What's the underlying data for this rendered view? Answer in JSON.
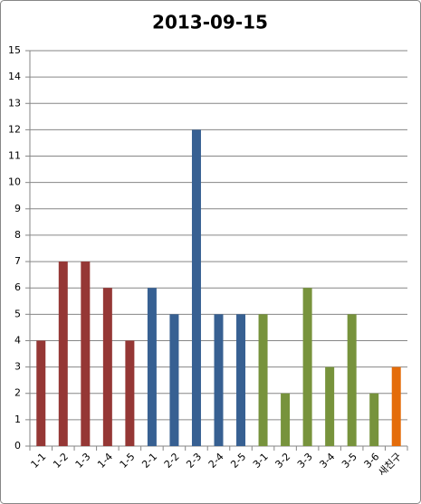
{
  "chart_data": {
    "type": "bar",
    "title": "2013-09-15",
    "categories": [
      "1-1",
      "1-2",
      "1-3",
      "1-4",
      "1-5",
      "2-1",
      "2-2",
      "2-3",
      "2-4",
      "2-5",
      "3-1",
      "3-2",
      "3-3",
      "3-4",
      "3-5",
      "3-6",
      "새친구"
    ],
    "values": [
      4,
      7,
      7,
      6,
      4,
      6,
      5,
      12,
      5,
      5,
      5,
      2,
      6,
      3,
      5,
      2,
      3
    ],
    "colors": [
      "#953735",
      "#953735",
      "#953735",
      "#953735",
      "#953735",
      "#376092",
      "#376092",
      "#376092",
      "#376092",
      "#376092",
      "#77933c",
      "#77933c",
      "#77933c",
      "#77933c",
      "#77933c",
      "#77933c",
      "#e46c0a"
    ],
    "ylim": [
      0,
      15
    ],
    "yticks": [
      0,
      1,
      2,
      3,
      4,
      5,
      6,
      7,
      8,
      9,
      10,
      11,
      12,
      13,
      14,
      15
    ],
    "grid": true
  }
}
